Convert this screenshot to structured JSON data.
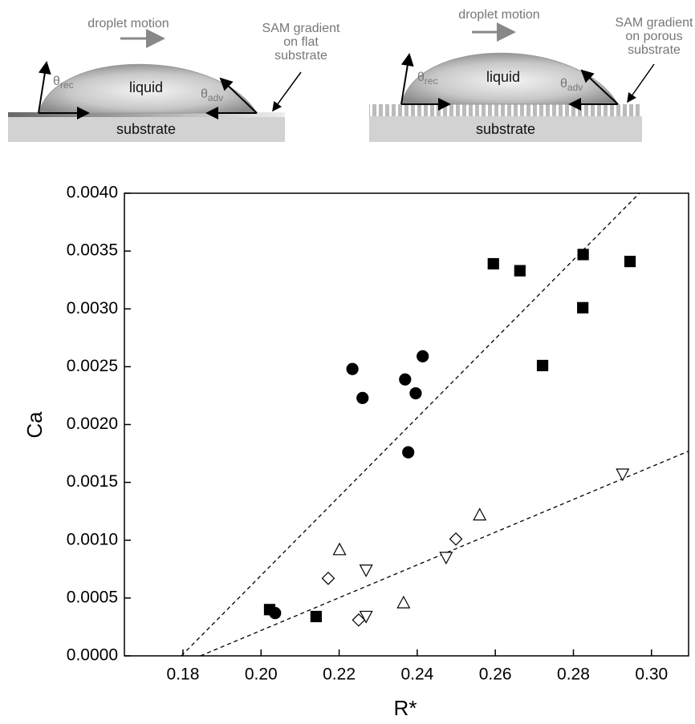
{
  "schematics": [
    {
      "motion": "droplet motion",
      "label": [
        "SAM gradient",
        "on flat",
        "substrate"
      ],
      "liquid": "liquid",
      "substrate": "substrate",
      "theta_rec": {
        "symbol": "θ",
        "sub": "rec"
      },
      "theta_adv": {
        "symbol": "θ",
        "sub": "adv"
      }
    },
    {
      "motion": "droplet motion",
      "label": [
        "SAM gradient",
        "on porous",
        "substrate"
      ],
      "liquid": "liquid",
      "substrate": "substrate",
      "theta_rec": {
        "symbol": "θ",
        "sub": "rec"
      },
      "theta_adv": {
        "symbol": "θ",
        "sub": "adv"
      }
    }
  ],
  "chart_data": {
    "type": "scatter",
    "xlabel": "R*",
    "ylabel": "Ca",
    "xlim": [
      0.165,
      0.3095
    ],
    "ylim": [
      0,
      0.004
    ],
    "xticks": [
      0.18,
      {
        "value": 0.2,
        "label": "0.20"
      },
      0.22,
      0.24,
      0.26,
      0.28,
      {
        "value": 0.3,
        "label": "0.30"
      }
    ],
    "yticks": [
      {
        "value": 0,
        "label": "0.0000"
      },
      {
        "value": 0.0005,
        "label": "0.0005"
      },
      {
        "value": 0.001,
        "label": "0.0010"
      },
      {
        "value": 0.0015,
        "label": "0.0015"
      },
      {
        "value": 0.002,
        "label": "0.0020"
      },
      {
        "value": 0.0025,
        "label": "0.0025"
      },
      {
        "value": 0.003,
        "label": "0.0030"
      },
      {
        "value": 0.0035,
        "label": "0.0035"
      },
      {
        "value": 0.004,
        "label": "0.0040"
      }
    ],
    "series": [
      {
        "marker": "square",
        "filled": true,
        "color": "#000000",
        "x": [
          0.2022,
          0.2141,
          0.2595,
          0.2663,
          0.2825,
          0.2824,
          0.2721,
          0.2945
        ],
        "values": [
          0.0004,
          0.00034,
          0.00339,
          0.00333,
          0.00347,
          0.00301,
          0.00251,
          0.00341
        ]
      },
      {
        "marker": "circle",
        "filled": true,
        "color": "#000000",
        "x": [
          0.2036,
          0.2234,
          0.226,
          0.2369,
          0.2396,
          0.2414,
          0.2377
        ],
        "values": [
          0.00037,
          0.00248,
          0.00223,
          0.00239,
          0.00227,
          0.00259,
          0.00176
        ]
      },
      {
        "marker": "triangle-up",
        "filled": false,
        "color": "#000000",
        "x": [
          0.2201,
          0.2365,
          0.256
        ],
        "values": [
          0.00092,
          0.00046,
          0.00122
        ]
      },
      {
        "marker": "diamond",
        "filled": false,
        "color": "#000000",
        "x": [
          0.2172,
          0.225,
          0.2499
        ],
        "values": [
          0.00067,
          0.00031,
          0.00101
        ]
      },
      {
        "marker": "triangle-down",
        "filled": false,
        "color": "#000000",
        "x": [
          0.2269,
          0.2269,
          0.2474,
          0.2926
        ],
        "values": [
          0.00074,
          0.00034,
          0.00085,
          0.00157
        ]
      }
    ],
    "fit_lines": [
      {
        "x": [
          0.1796,
          0.2969
        ],
        "values": [
          0,
          0.004
        ]
      },
      {
        "x": [
          0.1845,
          0.3095
        ],
        "values": [
          0,
          0.00177
        ]
      }
    ]
  }
}
